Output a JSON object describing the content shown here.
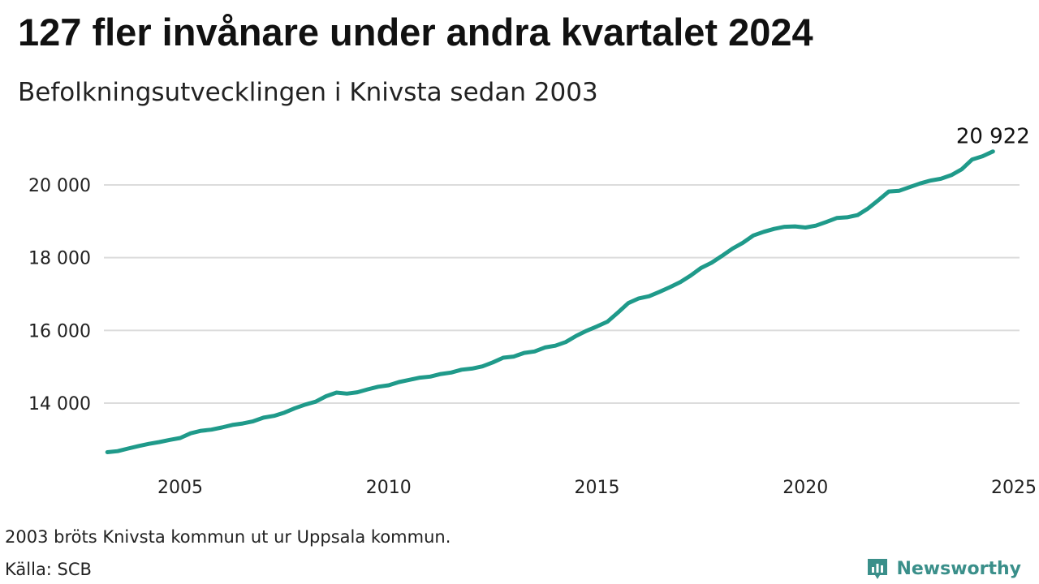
{
  "title": "127 fler invånare under andra kvartalet 2024",
  "subtitle": "Befolkningsutvecklingen i Knivsta sedan 2003",
  "footnote": "2003 bröts Knivsta kommun ut ur Uppsala kommun.",
  "source": "Källa: SCB",
  "brand": {
    "name": "Newsworthy",
    "icon": "newsworthy-logo-icon",
    "color": "#3a8f8a"
  },
  "chart_data": {
    "type": "line",
    "title": "127 fler invånare under andra kvartalet 2024",
    "subtitle": "Befolkningsutvecklingen i Knivsta sedan 2003",
    "xlabel": "",
    "ylabel": "",
    "xlim": [
      2003.0,
      2025.0
    ],
    "ylim": [
      12200,
      21400
    ],
    "x_ticks": [
      2005,
      2010,
      2015,
      2020,
      2025
    ],
    "x_tick_labels": [
      "2005",
      "2010",
      "2015",
      "2020",
      "2025"
    ],
    "y_ticks": [
      14000,
      16000,
      18000,
      20000
    ],
    "y_tick_labels": [
      "14 000",
      "16 000",
      "18 000",
      "20 000"
    ],
    "grid": "horizontal",
    "line_color": "#1f9a8a",
    "end_label": "20 922",
    "series": [
      {
        "x": [
          2003.25,
          2003.5,
          2003.75,
          2004.0,
          2004.25,
          2004.5,
          2004.75,
          2005.0,
          2005.25,
          2005.5,
          2005.75,
          2006.0,
          2006.25,
          2006.5,
          2006.75,
          2007.0,
          2007.25,
          2007.5,
          2007.75,
          2008.0,
          2008.25,
          2008.5,
          2008.75,
          2009.0,
          2009.25,
          2009.5,
          2009.75,
          2010.0,
          2010.25,
          2010.5,
          2010.75,
          2011.0,
          2011.25,
          2011.5,
          2011.75,
          2012.0,
          2012.25,
          2012.5,
          2012.75,
          2013.0,
          2013.25,
          2013.5,
          2013.75,
          2014.0,
          2014.25,
          2014.5,
          2014.75,
          2015.0,
          2015.25,
          2015.5,
          2015.75,
          2016.0,
          2016.25,
          2016.5,
          2016.75,
          2017.0,
          2017.25,
          2017.5,
          2017.75,
          2018.0,
          2018.25,
          2018.5,
          2018.75,
          2019.0,
          2019.25,
          2019.5,
          2019.75,
          2020.0,
          2020.25,
          2020.5,
          2020.75,
          2021.0,
          2021.25,
          2021.5,
          2021.75,
          2022.0,
          2022.25,
          2022.5,
          2022.75,
          2023.0,
          2023.25,
          2023.5,
          2023.75,
          2024.0,
          2024.25,
          2024.5
        ],
        "values": [
          12650,
          12680,
          12750,
          12820,
          12880,
          12930,
          12990,
          13040,
          13170,
          13240,
          13270,
          13330,
          13400,
          13440,
          13500,
          13600,
          13650,
          13740,
          13860,
          13960,
          14040,
          14190,
          14290,
          14260,
          14300,
          14380,
          14450,
          14490,
          14580,
          14640,
          14700,
          14730,
          14800,
          14840,
          14920,
          14950,
          15010,
          15120,
          15250,
          15280,
          15380,
          15420,
          15530,
          15580,
          15680,
          15850,
          15990,
          16110,
          16240,
          16490,
          16750,
          16880,
          16940,
          17060,
          17190,
          17330,
          17510,
          17720,
          17860,
          18050,
          18250,
          18410,
          18610,
          18710,
          18790,
          18850,
          18860,
          18830,
          18880,
          18980,
          19090,
          19110,
          19170,
          19350,
          19580,
          19820,
          19840,
          19940,
          20040,
          20120,
          20170,
          20270,
          20430,
          20700,
          20790,
          20922
        ]
      }
    ]
  }
}
